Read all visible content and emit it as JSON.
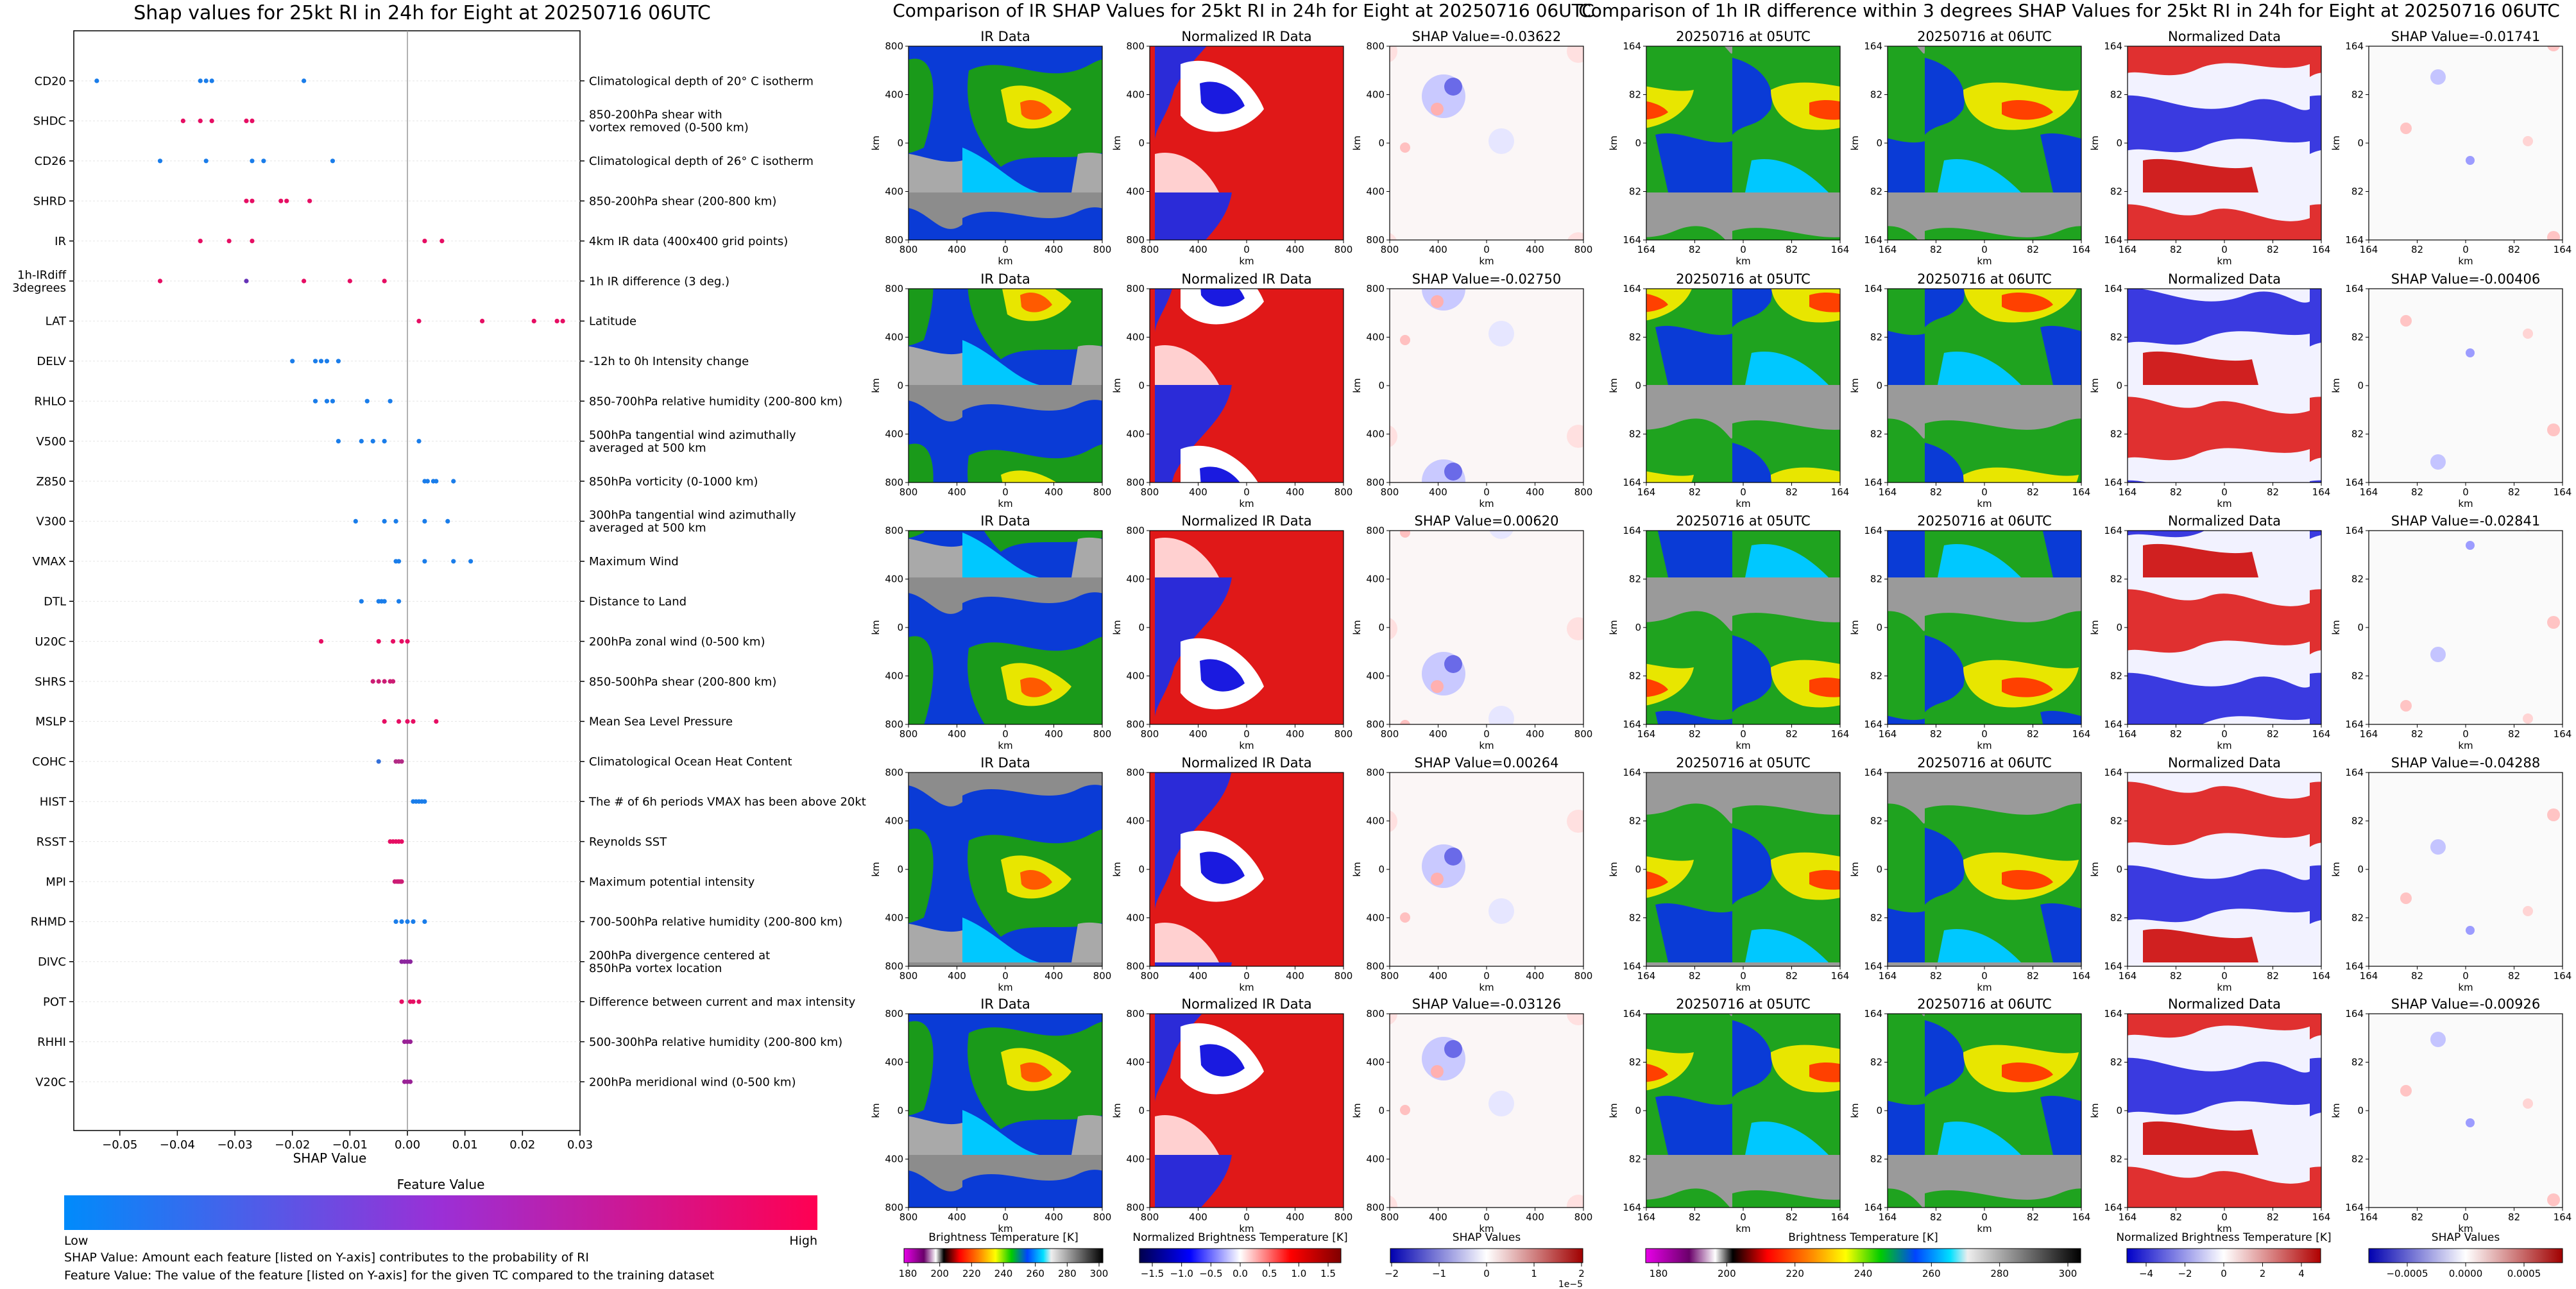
{
  "left_panel": {
    "title": "Shap values for 25kt RI in 24h for Eight at 20250716 06UTC",
    "xlabel": "SHAP Value",
    "colorbar_title": "Feature Value",
    "colorbar_low": "Low",
    "colorbar_high": "High",
    "note1": "SHAP Value: Amount each feature [listed on Y-axis] contributes to the probability of RI",
    "note2": "Feature Value: The value of the feature [listed on Y-axis] for the given TC compared to the training dataset"
  },
  "chart_data": {
    "type": "scatter",
    "title": "Shap values for 25kt RI in 24h for Eight at 20250716 06UTC",
    "xlabel": "SHAP Value",
    "xlim": [
      -0.058,
      0.03
    ],
    "xticks": [
      "−0.05",
      "−0.04",
      "−0.03",
      "−0.02",
      "−0.01",
      "0.00",
      "0.01",
      "0.02",
      "0.03"
    ],
    "xtick_values": [
      -0.05,
      -0.04,
      -0.03,
      -0.02,
      -0.01,
      0.0,
      0.01,
      0.02,
      0.03
    ],
    "feature_value_colors": {
      "low": "#008bfb",
      "high": "#ff0052"
    },
    "features": [
      {
        "name": "CD20",
        "desc": "Climatological depth of 20° C isotherm",
        "shap": [
          -0.054,
          -0.036,
          -0.035,
          -0.034,
          -0.018
        ],
        "fv": [
          0.1,
          0.1,
          0.1,
          0.1,
          0.1
        ]
      },
      {
        "name": "SHDC",
        "desc": "850-200hPa shear with\nvortex removed (0-500 km)",
        "shap": [
          -0.039,
          -0.036,
          -0.034,
          -0.028,
          -0.027
        ],
        "fv": [
          0.9,
          0.9,
          0.9,
          0.9,
          0.9
        ]
      },
      {
        "name": "CD26",
        "desc": "Climatological depth of 26° C isotherm",
        "shap": [
          -0.043,
          -0.035,
          -0.027,
          -0.025,
          -0.013
        ],
        "fv": [
          0.1,
          0.1,
          0.1,
          0.1,
          0.1
        ]
      },
      {
        "name": "SHRD",
        "desc": "850-200hPa shear (200-800 km)",
        "shap": [
          -0.028,
          -0.027,
          -0.022,
          -0.021,
          -0.017
        ],
        "fv": [
          0.9,
          0.9,
          0.9,
          0.9,
          0.9
        ]
      },
      {
        "name": "IR",
        "desc": "4km IR data (400x400 grid points)",
        "shap": [
          -0.036,
          -0.031,
          -0.027,
          0.003,
          0.006
        ],
        "fv": [
          0.9,
          0.9,
          0.9,
          0.9,
          0.9
        ]
      },
      {
        "name": "1h-IRdiff\n3degrees",
        "desc": "1h IR difference (3 deg.)",
        "shap": [
          -0.043,
          -0.028,
          -0.018,
          -0.01,
          -0.004
        ],
        "fv": [
          0.9,
          0.4,
          0.9,
          0.9,
          0.9
        ]
      },
      {
        "name": "LAT",
        "desc": "Latitude",
        "shap": [
          0.002,
          0.013,
          0.022,
          0.026,
          0.027
        ],
        "fv": [
          0.9,
          0.9,
          0.9,
          0.9,
          0.9
        ]
      },
      {
        "name": "DELV",
        "desc": "-12h to 0h Intensity change",
        "shap": [
          -0.02,
          -0.016,
          -0.015,
          -0.014,
          -0.012
        ],
        "fv": [
          0.1,
          0.1,
          0.1,
          0.1,
          0.1
        ]
      },
      {
        "name": "RHLO",
        "desc": "850-700hPa relative humidity (200-800 km)",
        "shap": [
          -0.016,
          -0.014,
          -0.013,
          -0.007,
          -0.003
        ],
        "fv": [
          0.1,
          0.1,
          0.1,
          0.1,
          0.1
        ]
      },
      {
        "name": "V500",
        "desc": "500hPa tangential wind azimuthally\naveraged at 500 km",
        "shap": [
          -0.012,
          -0.008,
          -0.006,
          -0.004,
          0.002
        ],
        "fv": [
          0.1,
          0.1,
          0.1,
          0.1,
          0.1
        ]
      },
      {
        "name": "Z850",
        "desc": "850hPa vorticity (0-1000 km)",
        "shap": [
          0.003,
          0.0035,
          0.0045,
          0.005,
          0.008
        ],
        "fv": [
          0.1,
          0.1,
          0.1,
          0.1,
          0.1
        ]
      },
      {
        "name": "V300",
        "desc": "300hPa tangential wind azimuthally\naveraged at 500 km",
        "shap": [
          -0.009,
          -0.004,
          -0.002,
          0.003,
          0.007
        ],
        "fv": [
          0.1,
          0.1,
          0.1,
          0.1,
          0.1
        ]
      },
      {
        "name": "VMAX",
        "desc": "Maximum Wind",
        "shap": [
          -0.002,
          -0.0015,
          0.003,
          0.008,
          0.011
        ],
        "fv": [
          0.1,
          0.1,
          0.1,
          0.1,
          0.1
        ]
      },
      {
        "name": "DTL",
        "desc": "Distance to Land",
        "shap": [
          -0.008,
          -0.005,
          -0.0045,
          -0.004,
          -0.0015
        ],
        "fv": [
          0.1,
          0.1,
          0.1,
          0.1,
          0.1
        ]
      },
      {
        "name": "U20C",
        "desc": "200hPa zonal wind (0-500 km)",
        "shap": [
          -0.015,
          -0.005,
          -0.0025,
          -0.001,
          0.0
        ],
        "fv": [
          0.9,
          0.9,
          0.9,
          0.9,
          0.9
        ]
      },
      {
        "name": "SHRS",
        "desc": "850-500hPa shear (200-800 km)",
        "shap": [
          -0.006,
          -0.005,
          -0.004,
          -0.003,
          -0.0025
        ],
        "fv": [
          0.8,
          0.8,
          0.8,
          0.8,
          0.8
        ]
      },
      {
        "name": "MSLP",
        "desc": "Mean Sea Level Pressure",
        "shap": [
          -0.004,
          -0.0015,
          0.0,
          0.001,
          0.005
        ],
        "fv": [
          0.9,
          0.9,
          0.9,
          0.9,
          0.9
        ]
      },
      {
        "name": "COHC",
        "desc": "Climatological Ocean Heat Content",
        "shap": [
          -0.005,
          -0.002,
          -0.0015,
          -0.001
        ],
        "fv": [
          0.2,
          0.7,
          0.7,
          0.7
        ]
      },
      {
        "name": "HIST",
        "desc": "The # of 6h periods VMAX has been above 20kt",
        "shap": [
          0.001,
          0.0015,
          0.002,
          0.0025,
          0.003
        ],
        "fv": [
          0.1,
          0.1,
          0.1,
          0.1,
          0.1
        ]
      },
      {
        "name": "RSST",
        "desc": "Reynolds SST",
        "shap": [
          -0.003,
          -0.0025,
          -0.002,
          -0.0015,
          -0.001
        ],
        "fv": [
          0.9,
          0.9,
          0.9,
          0.9,
          0.9
        ]
      },
      {
        "name": "MPI",
        "desc": "Maximum potential intensity",
        "shap": [
          -0.0022,
          -0.0018,
          -0.0015,
          -0.0012,
          -0.001
        ],
        "fv": [
          0.8,
          0.8,
          0.8,
          0.8,
          0.8
        ]
      },
      {
        "name": "RHMD",
        "desc": "700-500hPa relative humidity (200-800 km)",
        "shap": [
          -0.002,
          -0.001,
          0.0,
          0.001,
          0.003
        ],
        "fv": [
          0.1,
          0.1,
          0.1,
          0.1,
          0.1
        ]
      },
      {
        "name": "DIVC",
        "desc": "200hPa divergence centered at\n850hPa vortex location",
        "shap": [
          -0.001,
          -0.0005,
          0.0,
          0.0005
        ],
        "fv": [
          0.55,
          0.55,
          0.55,
          0.55
        ]
      },
      {
        "name": "POT",
        "desc": "Difference between current and max intensity",
        "shap": [
          -0.001,
          0.0005,
          0.001,
          0.002
        ],
        "fv": [
          0.9,
          0.9,
          0.9,
          0.9
        ]
      },
      {
        "name": "RHHI",
        "desc": "500-300hPa relative humidity (200-800 km)",
        "shap": [
          -0.0005,
          0.0,
          0.0005
        ],
        "fv": [
          0.6,
          0.6,
          0.6
        ]
      },
      {
        "name": "V20C",
        "desc": "200hPa meridional wind (0-500 km)",
        "shap": [
          -0.0005,
          0.0,
          0.0005
        ],
        "fv": [
          0.6,
          0.6,
          0.6
        ]
      }
    ]
  },
  "ir_panel": {
    "suptitle": "Comparison of IR SHAP Values for 25kt RI in 24h for Eight at 20250716 06UTC",
    "col_titles": [
      "IR Data",
      "Normalized IR Data"
    ],
    "shap_titles": [
      "SHAP Value=-0.03622",
      "SHAP Value=-0.02750",
      "SHAP Value=0.00620",
      "SHAP Value=0.00264",
      "SHAP Value=-0.03126"
    ],
    "ylabel": "km",
    "xlabel": "km",
    "yticks": [
      "800",
      "400",
      "0",
      "400",
      "800"
    ],
    "xticks": [
      "800",
      "400",
      "0",
      "400",
      "800"
    ],
    "colorbars": [
      {
        "label": "Brightness Temperature [K]",
        "ticks": [
          "180",
          "200",
          "220",
          "240",
          "260",
          "280",
          "300"
        ]
      },
      {
        "label": "Normalized Brightness Temperature [K]",
        "ticks": [
          "−1.5",
          "−1.0",
          "−0.5",
          "0.0",
          "0.5",
          "1.0",
          "1.5"
        ]
      },
      {
        "label": "SHAP Values",
        "ticks": [
          "−2",
          "−1",
          "0",
          "1",
          "2"
        ],
        "offset": "1e−5"
      }
    ]
  },
  "diff_panel": {
    "suptitle": "Comparison of 1h IR difference within 3 degrees SHAP Values for 25kt RI in 24h for Eight at 20250716 06UTC",
    "col_titles": [
      "20250716 at 05UTC",
      "20250716 at 06UTC",
      "Normalized Data"
    ],
    "shap_titles": [
      "SHAP Value=-0.01741",
      "SHAP Value=-0.00406",
      "SHAP Value=-0.02841",
      "SHAP Value=-0.04288",
      "SHAP Value=-0.00926"
    ],
    "ylabel": "km",
    "xlabel": "km",
    "yticks": [
      "164",
      "82",
      "0",
      "82",
      "164"
    ],
    "xticks": [
      "164",
      "82",
      "0",
      "82",
      "164"
    ],
    "colorbars": [
      {
        "label": "Brightness Temperature [K]",
        "ticks": [
          "180",
          "200",
          "220",
          "240",
          "260",
          "280",
          "300"
        ]
      },
      {
        "label": "Normalized Brightness Temperature [K]",
        "ticks": [
          "−4",
          "−2",
          "0",
          "2",
          "4"
        ]
      },
      {
        "label": "SHAP Values",
        "ticks": [
          "−0.0005",
          "0.0000",
          "0.0005"
        ]
      }
    ]
  }
}
